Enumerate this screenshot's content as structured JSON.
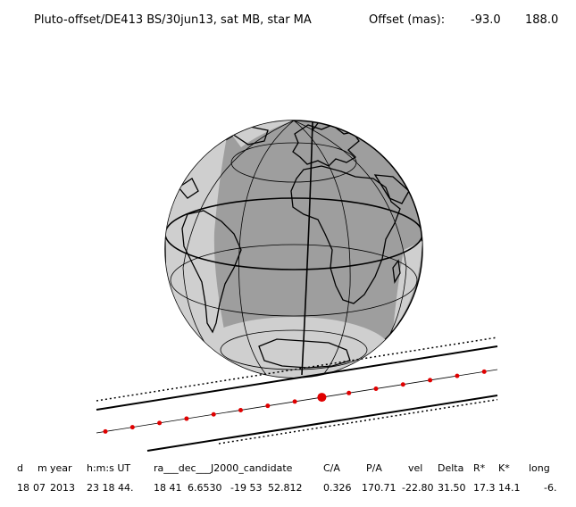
{
  "header": {
    "title": "Pluto-offset/DE413 BS/30jun13, sat MB, star MA",
    "offset_label": "Offset (mas):",
    "offset_x": "-93.0",
    "offset_y": "188.0"
  },
  "colors": {
    "globe_fill": "#9e9e9e",
    "globe_light": "#cfcfcf",
    "line": "#000000",
    "track_dot": "#e00000"
  },
  "table": {
    "headers": [
      "d",
      "m",
      "year",
      "h:m:s UT",
      "ra___dec___J2000_candidate",
      "C/A",
      "P/A",
      "vel",
      "Delta",
      "R*",
      "K*",
      "long"
    ],
    "values": [
      "18",
      "07",
      "2013",
      "23 18 44.",
      "18 41",
      "6.6530",
      "-19 53",
      "52.812",
      "0.326",
      "170.71",
      "-22.80",
      "31.50",
      "17.3",
      "14.1",
      "-6."
    ]
  }
}
